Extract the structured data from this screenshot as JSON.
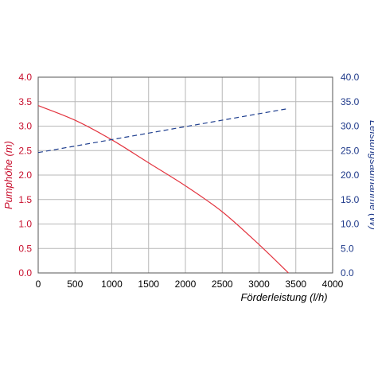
{
  "colors": {
    "pump_series": "#e3343f",
    "power_series": "#1f3f8f",
    "left_axis": "#c8102e",
    "right_axis": "#1f3a8a",
    "grid": "#b7b7b7"
  },
  "chart_data": {
    "type": "line",
    "title": "",
    "xlabel": "Förderleistung (l/h)",
    "ylabel_left": "Pumphöhe (m)",
    "ylabel_right": "Leistungsaufnahme (W)",
    "xlim": [
      0,
      4000
    ],
    "ylim_left": [
      0,
      4.0
    ],
    "ylim_right": [
      0,
      40.0
    ],
    "grid": true,
    "legend": "none",
    "x_ticks": [
      "0",
      "500",
      "1000",
      "1500",
      "2000",
      "2500",
      "3000",
      "3500",
      "4000"
    ],
    "left_ticks": [
      "0.0",
      "0.5",
      "1.0",
      "1.5",
      "2.0",
      "2.5",
      "3.0",
      "3.5",
      "4.0"
    ],
    "right_ticks": [
      "0.0",
      "5.0",
      "10.0",
      "15.0",
      "20.0",
      "25.0",
      "30.0",
      "35.0",
      "40.0"
    ],
    "series": [
      {
        "axis": "left",
        "style": "solid",
        "color": "#e3343f",
        "x": [
          0,
          500,
          1000,
          1500,
          2000,
          2500,
          3000,
          3400
        ],
        "y": [
          3.42,
          3.12,
          2.72,
          2.25,
          1.78,
          1.25,
          0.58,
          0.0
        ]
      },
      {
        "axis": "right",
        "style": "dashed",
        "color": "#1f3f8f",
        "x": [
          0,
          3400
        ],
        "y": [
          24.6,
          33.6
        ]
      }
    ]
  }
}
